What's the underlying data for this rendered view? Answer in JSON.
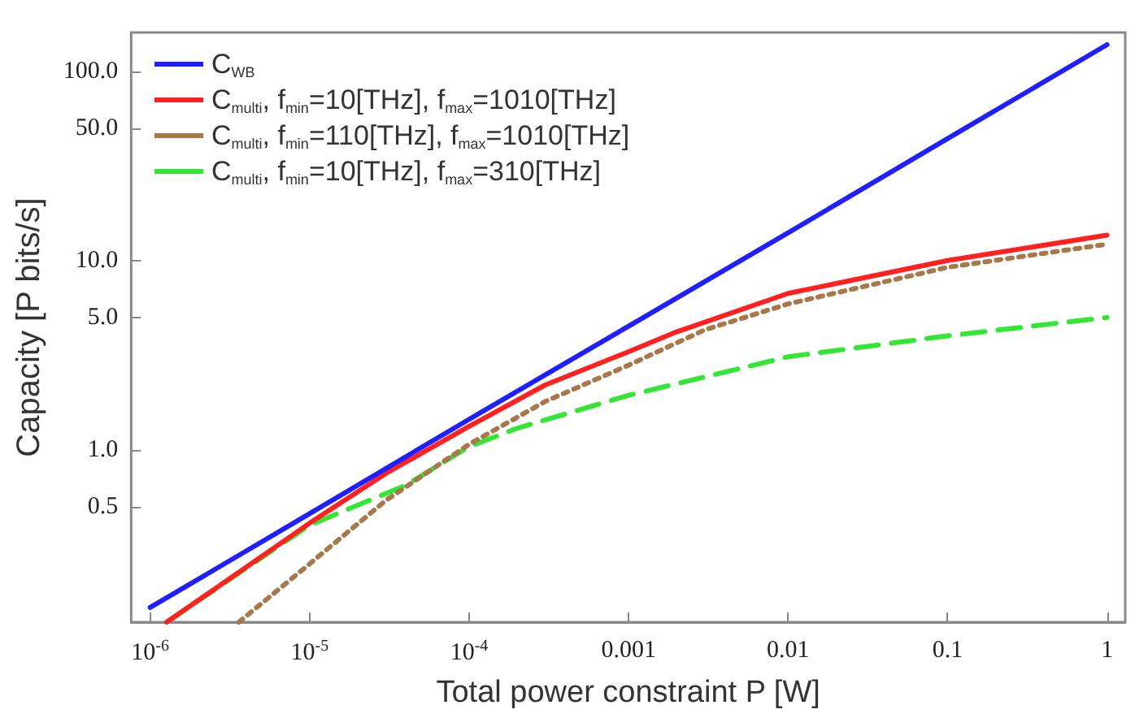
{
  "chart_data": {
    "type": "line",
    "xlabel": "Total power constraint P [W]",
    "ylabel": "Capacity [P bits/s]",
    "log": "xy",
    "grid": false,
    "legend": "top left",
    "marker": "none",
    "xlim": [
      7.6e-07,
      1.3
    ],
    "ylim": [
      0.123,
      160
    ],
    "xticks": [
      {
        "value": 1e-06,
        "label": "10$^{-6}$"
      },
      {
        "value": 1e-05,
        "label": "10$^{-5}$"
      },
      {
        "value": 0.0001,
        "label": "10$^{-4}$"
      },
      {
        "value": 0.001,
        "label": "0.001"
      },
      {
        "value": 0.01,
        "label": "0.01"
      },
      {
        "value": 0.1,
        "label": "0.1"
      },
      {
        "value": 1,
        "label": "1"
      }
    ],
    "yticks": [
      0.5,
      {
        "value": 1,
        "label": "1.0"
      },
      {
        "value": 5,
        "label": "5.0"
      },
      {
        "value": 10,
        "label": "10.0"
      },
      {
        "value": 50,
        "label": "50.0"
      },
      {
        "value": 100,
        "label": "100.0"
      }
    ],
    "series": [
      {
        "name": "C$_{WB}$",
        "color": "#1f1fff",
        "line_style": "solid",
        "x": [
          1e-06,
          1e-05,
          0.0001,
          0.001,
          0.01,
          0.1,
          1
        ],
        "values": [
          0.147,
          0.46,
          1.45,
          4.5,
          14,
          44,
          138
        ]
      },
      {
        "name": "C$_{multi}$, f$_{min}$=10[THz], f$_{max}$=1010[THz]",
        "color": "#ff2020",
        "line_style": "solid",
        "x": [
          1.27e-06,
          1e-05,
          3e-05,
          0.0001,
          0.0003,
          0.001,
          0.002,
          0.01,
          0.1,
          1
        ],
        "values": [
          0.123,
          0.41,
          0.75,
          1.33,
          2.2,
          3.3,
          4.2,
          6.7,
          10,
          13.6
        ]
      },
      {
        "name": "C$_{multi}$, f$_{min}$=110[THz], f$_{max}$=1010[THz]",
        "color": "#a8784a",
        "line_style": "dotted",
        "x": [
          3.6e-06,
          1e-05,
          3e-05,
          0.0001,
          0.0003,
          0.001,
          0.003,
          0.01,
          0.1,
          1
        ],
        "values": [
          0.123,
          0.25,
          0.54,
          1.07,
          1.8,
          2.8,
          4.3,
          5.9,
          9.2,
          12.2
        ]
      },
      {
        "name": "C$_{multi}$, f$_{min}$=10[THz], f$_{max}$=310[THz]",
        "color": "#33e633",
        "line_style": "dashed",
        "x": [
          1.27e-06,
          1e-05,
          4e-05,
          0.0001,
          0.0002,
          0.001,
          0.01,
          0.1,
          1
        ],
        "values": [
          0.123,
          0.4,
          0.65,
          1.04,
          1.3,
          1.94,
          3.1,
          4.0,
          5.0
        ]
      }
    ]
  }
}
